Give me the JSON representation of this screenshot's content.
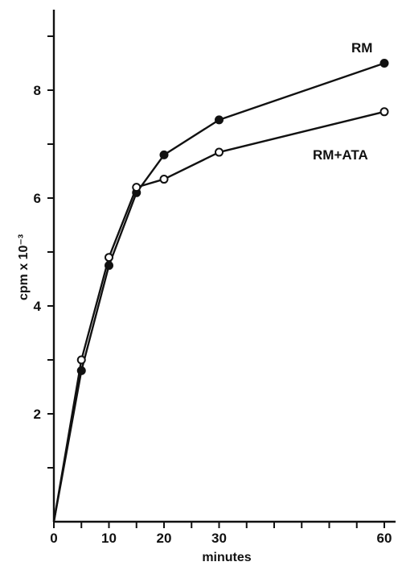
{
  "chart_data": {
    "type": "line",
    "title": "",
    "xlabel": "minutes",
    "ylabel": "cpm x 10⁻³",
    "xlim": [
      0,
      62
    ],
    "ylim": [
      0,
      9.5
    ],
    "x_ticks": [
      0,
      5,
      10,
      15,
      20,
      25,
      30,
      35,
      40,
      45,
      50,
      55,
      60
    ],
    "x_tick_labels": [
      {
        "value": 0,
        "label": "0"
      },
      {
        "value": 10,
        "label": "10"
      },
      {
        "value": 20,
        "label": "20"
      },
      {
        "value": 30,
        "label": "30"
      },
      {
        "value": 60,
        "label": "60"
      }
    ],
    "y_ticks": [
      1,
      2,
      3,
      4,
      5,
      6,
      7,
      8,
      9
    ],
    "y_tick_labels": [
      {
        "value": 2,
        "label": "2"
      },
      {
        "value": 4,
        "label": "4"
      },
      {
        "value": 6,
        "label": "6"
      },
      {
        "value": 8,
        "label": "8"
      }
    ],
    "grid": false,
    "legend": "none",
    "series": [
      {
        "name": "RM",
        "marker": "filled-circle",
        "color": "#111111",
        "x": [
          0,
          5,
          10,
          15,
          20,
          30,
          60
        ],
        "y": [
          0,
          2.8,
          4.75,
          6.1,
          6.8,
          7.45,
          8.5
        ]
      },
      {
        "name": "RM+ATA",
        "marker": "open-circle",
        "color": "#111111",
        "x": [
          0,
          5,
          10,
          15,
          20,
          30,
          60
        ],
        "y": [
          0,
          3.0,
          4.9,
          6.2,
          6.35,
          6.85,
          7.6
        ]
      }
    ]
  }
}
